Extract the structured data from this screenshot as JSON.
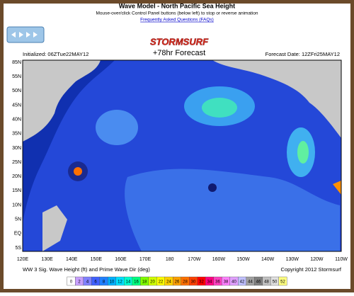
{
  "header": {
    "title": "Wave Model - North Pacific Sea Height",
    "subtitle": "Mouse-over/click Control Panel buttons (below left) to stop or reverse animation",
    "link": "Frequently Asked Questions (FAQs)"
  },
  "map": {
    "logo": "STORMSURF",
    "forecast": "+78hr Forecast",
    "initialized": "Initialized: 06ZTue22MAY12",
    "forecast_date": "Forecast Date: 12ZFri25MAY12",
    "lat_labels": [
      "85N",
      "55N",
      "50N",
      "45N",
      "40N",
      "35N",
      "30N",
      "25N",
      "20N",
      "15N",
      "10N",
      "5N",
      "EQ",
      "5S"
    ],
    "lon_labels": [
      "120E",
      "130E",
      "140E",
      "150E",
      "160E",
      "170E",
      "180",
      "170W",
      "160W",
      "150W",
      "140W",
      "130W",
      "120W",
      "110W"
    ],
    "caption": "WW 3 Sig. Wave Height (ft) and Prime Wave Dir (deg)",
    "copyright": "Copyright 2012 Stormsurf"
  },
  "colorbar": {
    "labels": [
      "0",
      "2",
      "4",
      "6",
      "8",
      "10",
      "12",
      "14",
      "16",
      "18",
      "20",
      "22",
      "24",
      "26",
      "28",
      "30",
      "32",
      "34",
      "36",
      "38",
      "40",
      "42",
      "44",
      "46",
      "48",
      "50",
      "52"
    ],
    "colors": [
      "#ffffff",
      "#c8a0ff",
      "#8080ff",
      "#4060ff",
      "#2080ff",
      "#00b0ff",
      "#00e0ff",
      "#00ffd0",
      "#00ff80",
      "#80ff00",
      "#d0ff00",
      "#ffff00",
      "#ffd000",
      "#ffa000",
      "#ff7000",
      "#ff4000",
      "#ff0000",
      "#ff0080",
      "#ff40c0",
      "#ff80ff",
      "#e0a0ff",
      "#c0c0ff",
      "#a0a0a0",
      "#808080",
      "#c0c0c0",
      "#e0e0e0",
      "#ffff80"
    ]
  }
}
